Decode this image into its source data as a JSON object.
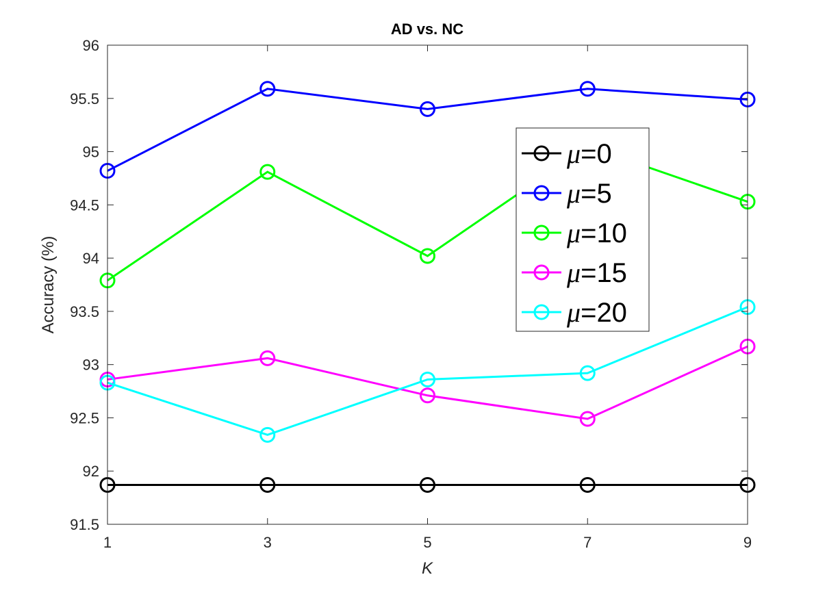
{
  "chart_data": {
    "type": "line",
    "title": "AD vs. NC",
    "xlabel": "K",
    "ylabel": "Accuracy (%)",
    "x": [
      1,
      3,
      5,
      7,
      9
    ],
    "xlim": [
      1,
      9
    ],
    "ylim": [
      91.5,
      96
    ],
    "xticks": [
      "1",
      "3",
      "5",
      "7",
      "9"
    ],
    "yticks": [
      "91.5",
      "92",
      "92.5",
      "93",
      "93.5",
      "94",
      "94.5",
      "95",
      "95.5",
      "96"
    ],
    "grid": false,
    "legend_position": "upper-right (inside)",
    "series": [
      {
        "name": "μ=0",
        "mu_symbol": "μ",
        "suffix": "=0",
        "color": "#000000",
        "values": [
          91.87,
          91.87,
          91.87,
          91.87,
          91.87
        ]
      },
      {
        "name": "μ=5",
        "mu_symbol": "μ",
        "suffix": "=5",
        "color": "#0000ff",
        "values": [
          94.82,
          95.59,
          95.4,
          95.59,
          95.49
        ]
      },
      {
        "name": "μ=10",
        "mu_symbol": "μ",
        "suffix": "=10",
        "color": "#00ff00",
        "values": [
          93.79,
          94.81,
          94.02,
          95.05,
          94.53
        ]
      },
      {
        "name": "μ=15",
        "mu_symbol": "μ",
        "suffix": "=15",
        "color": "#ff00ff",
        "values": [
          92.86,
          93.06,
          92.71,
          92.49,
          93.17
        ]
      },
      {
        "name": "μ=20",
        "mu_symbol": "μ",
        "suffix": "=20",
        "color": "#00ffff",
        "values": [
          92.83,
          92.34,
          92.86,
          92.92,
          93.54
        ]
      }
    ]
  }
}
